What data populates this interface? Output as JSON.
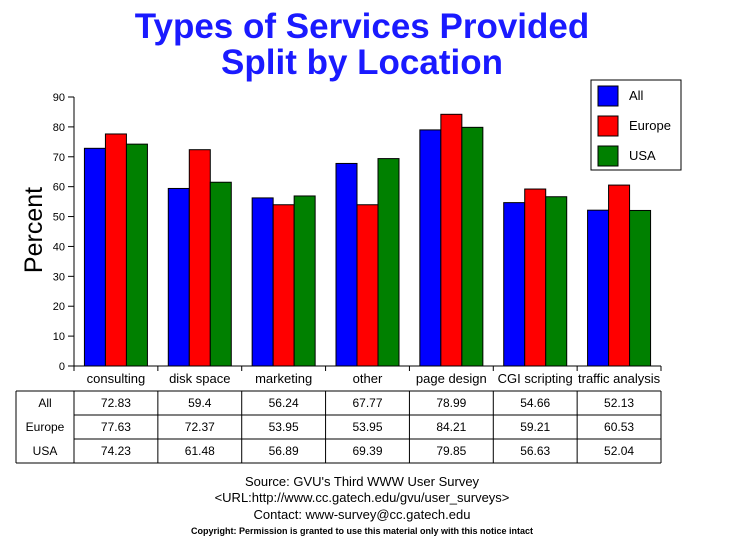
{
  "chart_data": {
    "type": "bar",
    "title_line1": "Types of Services Provided",
    "title_line2": "Split by Location",
    "ylabel": "Percent",
    "ylim": [
      0,
      90
    ],
    "yticks": [
      0,
      10,
      20,
      30,
      40,
      50,
      60,
      70,
      80,
      90
    ],
    "categories": [
      "consulting",
      "disk space",
      "marketing",
      "other",
      "page design",
      "CGI scripting",
      "traffic analysis"
    ],
    "series": [
      {
        "name": "All",
        "color": "#0000ff",
        "values": [
          72.83,
          59.4,
          56.24,
          67.77,
          78.99,
          54.66,
          52.13
        ]
      },
      {
        "name": "Europe",
        "color": "#ff0000",
        "values": [
          77.63,
          72.37,
          53.95,
          53.95,
          84.21,
          59.21,
          60.53
        ]
      },
      {
        "name": "USA",
        "color": "#008000",
        "values": [
          74.23,
          61.48,
          56.89,
          69.39,
          79.85,
          56.63,
          52.04
        ]
      }
    ],
    "legend_position": "top-right",
    "table": {
      "row_labels": [
        "All",
        "Europe",
        "USA"
      ],
      "cells": [
        [
          "72.83",
          "59.4",
          "56.24",
          "67.77",
          "78.99",
          "54.66",
          "52.13"
        ],
        [
          "77.63",
          "72.37",
          "53.95",
          "53.95",
          "84.21",
          "59.21",
          "60.53"
        ],
        [
          "74.23",
          "61.48",
          "56.89",
          "69.39",
          "79.85",
          "56.63",
          "52.04"
        ]
      ]
    }
  },
  "footer": {
    "source": "Source: GVU's Third WWW User Survey",
    "url": "<URL:http://www.cc.gatech.edu/gvu/user_surveys>",
    "contact": "Contact: www-survey@cc.gatech.edu",
    "copyright": "Copyright: Permission is granted to use this material only with this notice intact"
  }
}
